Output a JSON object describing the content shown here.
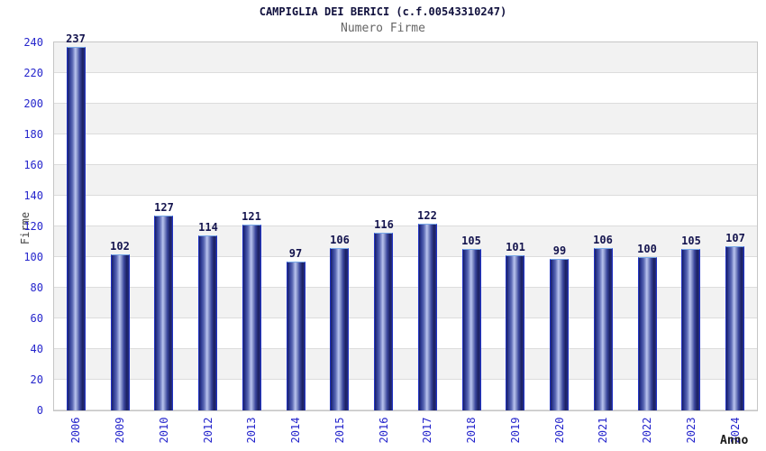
{
  "chart": {
    "title": "CAMPIGLIA DEI BERICI (c.f.00543310247)",
    "subtitle": "Numero Firme",
    "ylabel": "Firme",
    "xlabel": "Anno"
  },
  "chart_data": {
    "type": "bar",
    "title": "CAMPIGLIA DEI BERICI (c.f.00543310247)",
    "subtitle": "Numero Firme",
    "xlabel": "Anno",
    "ylabel": "Firme",
    "categories": [
      "2006",
      "2009",
      "2010",
      "2012",
      "2013",
      "2014",
      "2015",
      "2016",
      "2017",
      "2018",
      "2019",
      "2020",
      "2021",
      "2022",
      "2023",
      "2024"
    ],
    "values": [
      237,
      102,
      127,
      114,
      121,
      97,
      106,
      116,
      122,
      105,
      101,
      99,
      106,
      100,
      105,
      107
    ],
    "ylim": [
      0,
      240
    ],
    "ytick_step": 20,
    "grid": "horizontal-bands",
    "legend": "none",
    "colors": {
      "bar_dark": "#1b2060",
      "bar_highlight": "#b9c3ee",
      "bar_border": "#2133c4",
      "bar_border_top": "#79a9e8",
      "tick_label": "#2525cc",
      "value_label": "#14144e",
      "band_gray": "#f2f2f2",
      "gridline": "#dcdcdc",
      "plot_border": "#c6c6c6",
      "title_color": "#10103d",
      "subtitle_color": "#666666",
      "axis_title_color": "#444444"
    }
  }
}
